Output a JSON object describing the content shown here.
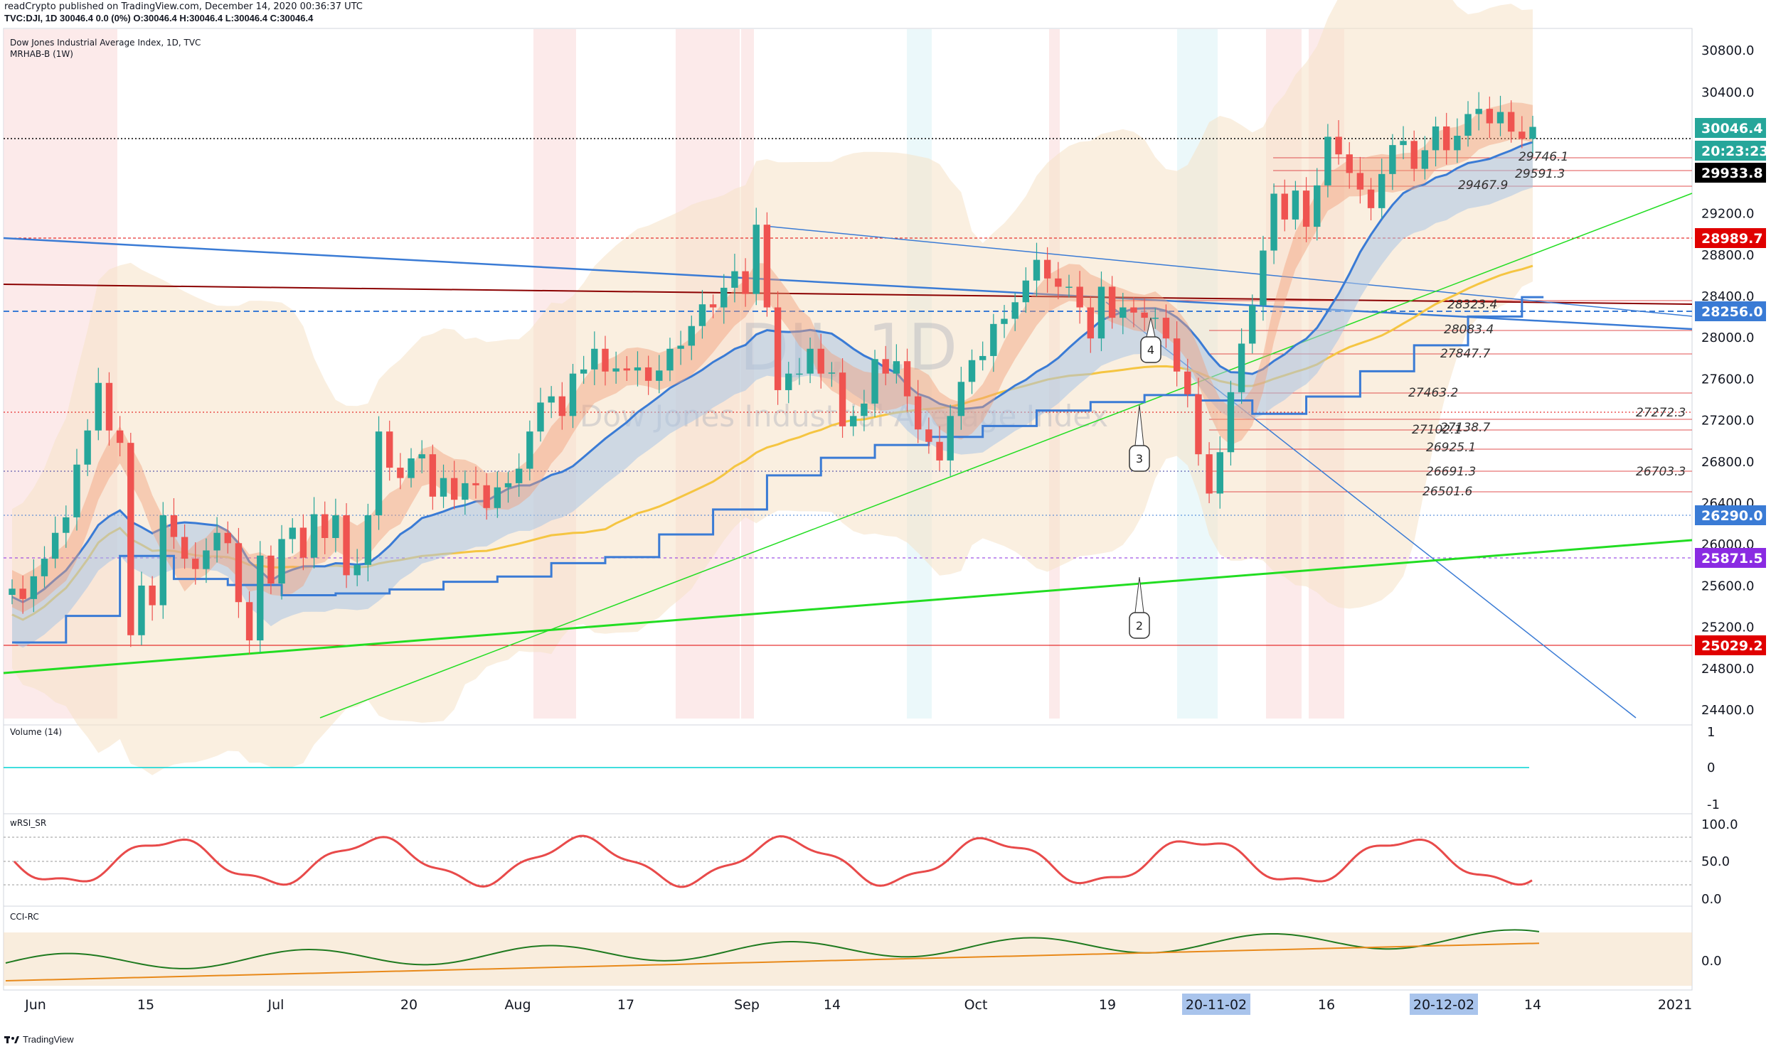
{
  "header": {
    "published": "readCrypto published on TradingView.com, December 14, 2020 00:36:37 UTC",
    "ohlc": "TVC:DJI, 1D 30046.4 0.0 (0%) O:30046.4 H:30046.4 L:30046.4 C:30046.4"
  },
  "legend": {
    "symbol": "Dow Jones Industrial Average Index, 1D, TVC",
    "indicator": "MRHAB-B (1W)"
  },
  "watermark": {
    "big": "DJI, 1D",
    "sub": "Dow Jones Industrial Average Index"
  },
  "panes": {
    "volume": "Volume (14)",
    "wrsi": "wRSI_SR",
    "cci": "CCI-RC"
  },
  "footer": {
    "brand": "TradingView"
  },
  "colors": {
    "up": "#26a69a",
    "down": "#ef5350",
    "bb_fill": "#f5e1c7",
    "green_line": "#22dd22",
    "blue_line": "#3a7bd5",
    "dark_red": "#8b0000",
    "ema_orange": "#f5c542"
  },
  "chart_data": {
    "type": "candlestick",
    "symbol": "TVC:DJI",
    "timeframe": "1D",
    "x_ticks": [
      "Jun",
      "15",
      "Jul",
      "20",
      "Aug",
      "17",
      "Sep",
      "14",
      "Oct",
      "19",
      "20-11-02",
      "16",
      "20-12-02",
      "14",
      "2021"
    ],
    "y_ticks": [
      24400.0,
      24800.0,
      25200.0,
      25600.0,
      26000.0,
      26400.0,
      26800.0,
      27200.0,
      27600.0,
      28000.0,
      28400.0,
      28800.0,
      29200.0,
      30400.0,
      30800.0
    ],
    "ylim": [
      24300,
      30900
    ],
    "last_price": 30046.4,
    "countdown": "20:23:23",
    "price_tags": [
      {
        "value": "30046.4",
        "bg": "#26a69a",
        "fg": "#ffffff"
      },
      {
        "value": "29933.8",
        "bg": "#000000",
        "fg": "#ffffff"
      },
      {
        "value": "28989.7",
        "bg": "#e00000",
        "fg": "#ffffff"
      },
      {
        "value": "28256.0",
        "bg": "#3a7bd5",
        "fg": "#ffffff"
      },
      {
        "value": "26290.0",
        "bg": "#3a7bd5",
        "fg": "#ffffff"
      },
      {
        "value": "25871.5",
        "bg": "#8a2be2",
        "fg": "#ffffff"
      },
      {
        "value": "25029.2",
        "bg": "#e00000",
        "fg": "#ffffff"
      }
    ],
    "level_labels": [
      "29746.1",
      "29591.3",
      "29467.9",
      "28323.4",
      "28083.4",
      "27847.7",
      "27463.2",
      "27272.3",
      "27138.7",
      "27102.1",
      "26925.1",
      "26703.3",
      "26691.3",
      "26501.6"
    ],
    "wave_labels": [
      "2",
      "3",
      "4"
    ],
    "close": [
      25580,
      25480,
      25700,
      25870,
      26120,
      26270,
      26780,
      27110,
      27570,
      27110,
      26990,
      25130,
      25610,
      25420,
      26290,
      26080,
      25870,
      25770,
      25950,
      26120,
      26020,
      25450,
      25080,
      25900,
      25630,
      26060,
      26170,
      25880,
      26300,
      26070,
      26290,
      25710,
      25810,
      26290,
      27100,
      26750,
      26650,
      26840,
      26880,
      26470,
      26650,
      26440,
      26600,
      26580,
      26360,
      26560,
      26600,
      26740,
      27100,
      27380,
      27440,
      27250,
      27660,
      27700,
      27900,
      27680,
      27710,
      27690,
      27720,
      27590,
      27690,
      27900,
      27930,
      28120,
      28330,
      28300,
      28490,
      28650,
      28430,
      29100,
      28300,
      27500,
      27660,
      27660,
      27900,
      27660,
      27670,
      27150,
      27250,
      27370,
      27800,
      27660,
      27780,
      27440,
      27120,
      27000,
      26820,
      27250,
      27580,
      27790,
      27830,
      28140,
      28190,
      28350,
      28560,
      28760,
      28580,
      28500,
      28500,
      28300,
      28000,
      28500,
      28200,
      28300,
      28250,
      28200,
      28200,
      28000,
      27680,
      27460,
      26880,
      26500,
      26900,
      27480,
      27950,
      28320,
      28850,
      29400,
      29150,
      29430,
      29080,
      29480,
      29950,
      29780,
      29600,
      29440,
      29260,
      29590,
      29870,
      29910,
      29640,
      29820,
      30050,
      29820,
      29960,
      30170,
      30220,
      30080,
      30190,
      30000,
      29930,
      30046
    ]
  }
}
